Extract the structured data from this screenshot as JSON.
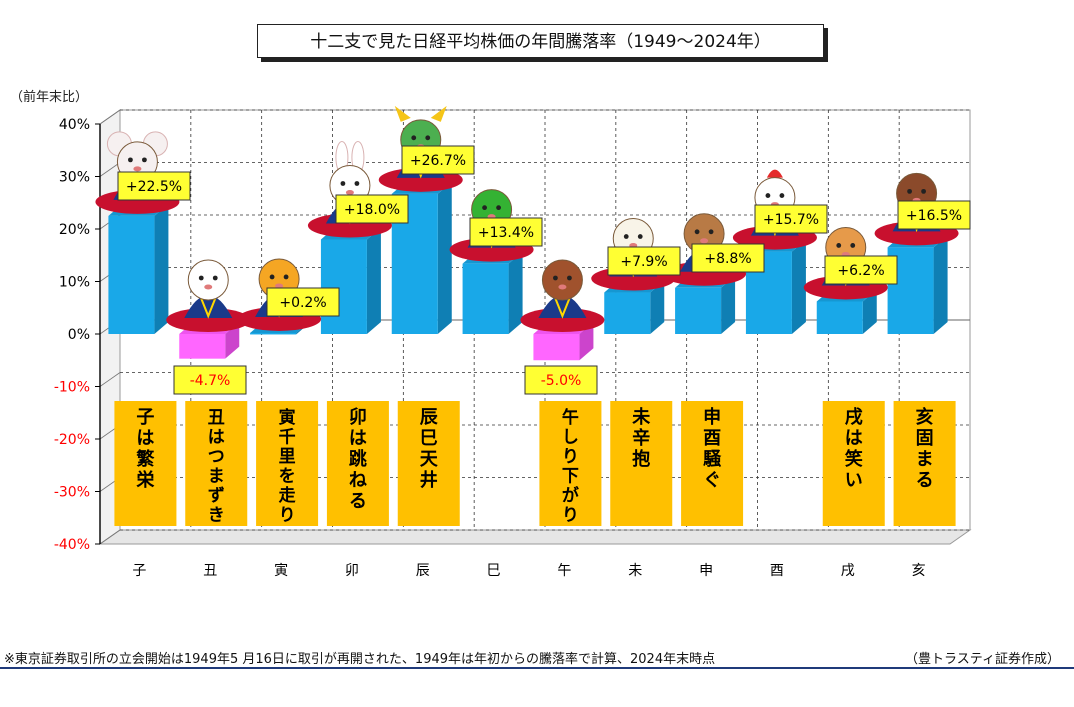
{
  "title": "十二支で見た日経平均株価の年間騰落率（1949～2024年）",
  "unit_label": "（前年末比）",
  "footnote": "※東京証券取引所の立会開始は1949年5 月16日に取引が再開された、1949年は年初からの騰落率で計算、2024年末時点",
  "source": "（豊トラスティ証券作成）",
  "colors": {
    "positive_bar": "#19a8e8",
    "negative_bar": "#ff66ff",
    "label_box": "#ffff33",
    "saying_box": "#ffc000",
    "negative_text": "#ff0000",
    "plot_bg": "#ffffff"
  },
  "chart_data": {
    "type": "bar",
    "categories": [
      "子",
      "丑",
      "寅",
      "卯",
      "辰",
      "巳",
      "午",
      "未",
      "申",
      "酉",
      "戌",
      "亥"
    ],
    "values": [
      22.5,
      -4.7,
      0.2,
      18.0,
      26.7,
      13.4,
      -5.0,
      7.9,
      8.8,
      15.7,
      6.2,
      16.5
    ],
    "data_labels": [
      "+22.5%",
      "-4.7%",
      "+0.2%",
      "+18.0%",
      "+26.7%",
      "+13.4%",
      "-5.0%",
      "+7.9%",
      "+8.8%",
      "+15.7%",
      "+6.2%",
      "+16.5%"
    ],
    "sayings": [
      "子は繁栄",
      "丑はつまずき",
      "寅千里を走り",
      "卯は跳ねる",
      "辰巳天井",
      "",
      "午しり下がり",
      "未辛抱",
      "申酉騒ぐ",
      "",
      "戌は笑い",
      "亥固まる"
    ],
    "ylim": [
      -40,
      40
    ],
    "yticks": [
      40,
      30,
      20,
      10,
      0,
      -10,
      -20,
      -30,
      -40
    ],
    "ytick_labels": [
      "40%",
      "30%",
      "20%",
      "10%",
      "0%",
      "-10%",
      "-20%",
      "-30%",
      "-40%"
    ],
    "grid": true,
    "legend": "none",
    "mascots": [
      "mouse",
      "cow",
      "tiger",
      "rabbit",
      "dragon",
      "snake",
      "horse",
      "sheep",
      "monkey",
      "rooster",
      "dog",
      "boar"
    ]
  }
}
